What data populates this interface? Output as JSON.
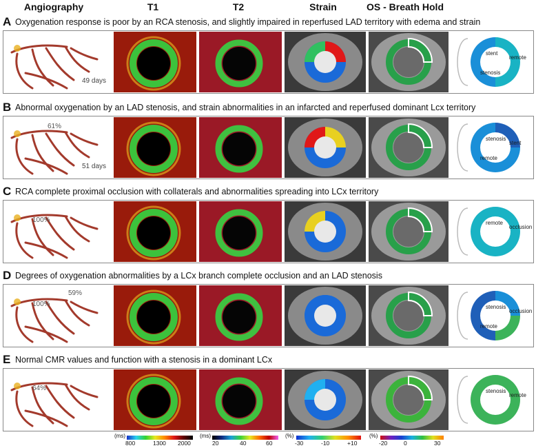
{
  "headers": [
    "Angiography",
    "T1",
    "T2",
    "Strain",
    "OS - Breath Hold"
  ],
  "rows": [
    {
      "letter": "A",
      "caption": "Oxygenation response is poor by an RCA stenosis, and slightly impaired in reperfused LAD territory with edema and strain",
      "days": "49 days",
      "pct": "",
      "pct2": "",
      "segments": [
        "stent",
        "remote",
        "stenosis"
      ]
    },
    {
      "letter": "B",
      "caption": "Abnormal oxygenation by an LAD stenosis, and strain abnormalities in an infarcted and reperfused dominant Lcx territory",
      "days": "51 days",
      "pct": "61%",
      "pct2": "",
      "segments": [
        "stenosis",
        "stent",
        "remote"
      ]
    },
    {
      "letter": "C",
      "caption": "RCA complete proximal occlusion with collaterals and abnormalities spreading into LCx territory",
      "days": "",
      "pct": "100%",
      "pct2": "",
      "segments": [
        "remote",
        "occlusion"
      ]
    },
    {
      "letter": "D",
      "caption": "Degrees of oxygenation abnormalities by a LCx branch complete occlusion and an LAD stenosis",
      "days": "",
      "pct": "100%",
      "pct2": "59%",
      "segments": [
        "stenosis",
        "occlusion",
        "remote"
      ]
    },
    {
      "letter": "E",
      "caption": "Normal CMR values and function with a stenosis in a dominant LCx",
      "days": "",
      "pct": "64%",
      "pct2": "",
      "segments": [
        "stenosis",
        "remote"
      ]
    }
  ],
  "scales": [
    {
      "unit": "(ms)",
      "ticks": [
        "800",
        "1300",
        "2000"
      ]
    },
    {
      "unit": "(ms)",
      "ticks": [
        "20",
        "40",
        "60"
      ]
    },
    {
      "unit": "(%)",
      "ticks": [
        "-30",
        "-10",
        "+10"
      ]
    },
    {
      "unit": "(%)",
      "ticks": [
        "-20",
        "0",
        "30"
      ]
    }
  ],
  "colors": {
    "vessel": "#a33a2c",
    "t1_bg": "#7a0c08",
    "t2_bg": "#b0202a",
    "seg_teal": "#19b3c4",
    "seg_blue": "#1a8fd8",
    "seg_green": "#3cb35a",
    "seg_dark": "#1f5fb8"
  }
}
